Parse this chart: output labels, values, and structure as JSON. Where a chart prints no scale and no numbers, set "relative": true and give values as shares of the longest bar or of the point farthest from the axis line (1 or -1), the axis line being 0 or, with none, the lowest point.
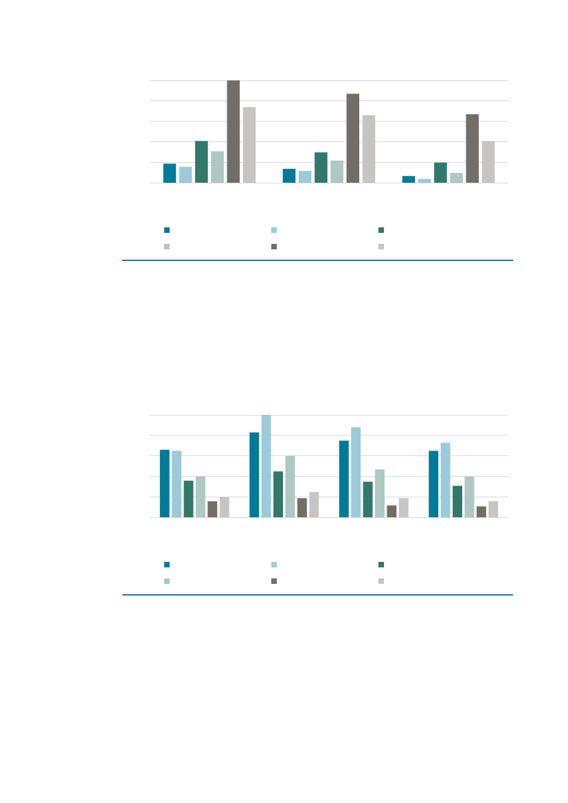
{
  "chart_data": [
    {
      "type": "bar",
      "relative": true,
      "categories": [
        null,
        null,
        null
      ],
      "series": [
        {
          "color": "#007a99",
          "values": [
            0.19,
            0.14,
            0.07
          ]
        },
        {
          "color": "#9ccad8",
          "values": [
            0.16,
            0.12,
            0.04
          ]
        },
        {
          "color": "#32786b",
          "values": [
            0.41,
            0.3,
            0.2
          ]
        },
        {
          "color": "#aec8c4",
          "values": [
            0.31,
            0.22,
            0.1
          ]
        },
        {
          "color": "#736d68",
          "values": [
            1,
            0.87,
            0.67
          ]
        },
        {
          "color": "#c6c5c3",
          "values": [
            0.74,
            0.66,
            0.41
          ]
        }
      ],
      "grid": "y"
    },
    {
      "type": "bar",
      "relative": true,
      "categories": [
        null,
        null,
        null,
        null
      ],
      "series": [
        {
          "color": "#007a99",
          "values": [
            0.66,
            0.83,
            0.75,
            0.65
          ]
        },
        {
          "color": "#9ccad8",
          "values": [
            0.65,
            1,
            0.88,
            0.73
          ]
        },
        {
          "color": "#32786b",
          "values": [
            0.36,
            0.45,
            0.35,
            0.31
          ]
        },
        {
          "color": "#aec8c4",
          "values": [
            0.4,
            0.6,
            0.47,
            0.4
          ]
        },
        {
          "color": "#736d68",
          "values": [
            0.16,
            0.19,
            0.12,
            0.11
          ]
        },
        {
          "color": "#c6c5c3",
          "values": [
            0.2,
            0.25,
            0.19,
            0.16
          ]
        }
      ],
      "grid": "y"
    }
  ]
}
